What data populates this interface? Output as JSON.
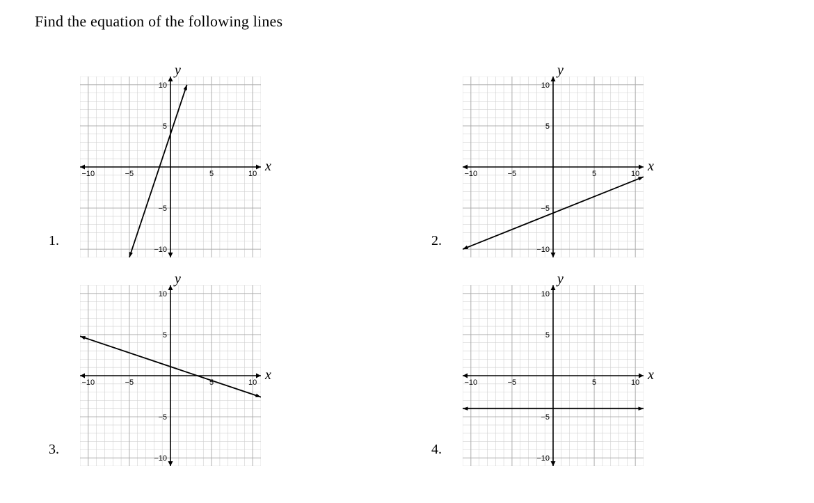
{
  "page": {
    "title": "Find the equation of the following lines",
    "background_color": "#ffffff",
    "font_family": "Times New Roman"
  },
  "axis_letters": {
    "x": "x",
    "y": "y"
  },
  "grid_style": {
    "xlim": [
      -11,
      11
    ],
    "ylim": [
      -11,
      11
    ],
    "major_step": 5,
    "minor_step": 1,
    "grid_minor_color": "#d0d0d0",
    "grid_major_color": "#a8a8a8",
    "axis_color": "#000000",
    "background_color": "#ffffff",
    "tick_font_size": 11,
    "tick_labels_x": [
      -10,
      -5,
      5,
      10
    ],
    "tick_labels_y": [
      -10,
      -5,
      5,
      10
    ],
    "line_color": "#000000",
    "line_width": 1.8
  },
  "graphs": [
    {
      "number": "1.",
      "line": {
        "p1": [
          -5,
          -11
        ],
        "p2": [
          2,
          10
        ]
      }
    },
    {
      "number": "2.",
      "line": {
        "p1": [
          -11,
          -10
        ],
        "p2": [
          11,
          -1.2
        ]
      }
    },
    {
      "number": "3.",
      "line": {
        "p1": [
          -11,
          4.8
        ],
        "p2": [
          11,
          -2.6
        ]
      }
    },
    {
      "number": "4.",
      "line": {
        "p1": [
          -11,
          -4
        ],
        "p2": [
          11,
          -4
        ]
      }
    }
  ]
}
